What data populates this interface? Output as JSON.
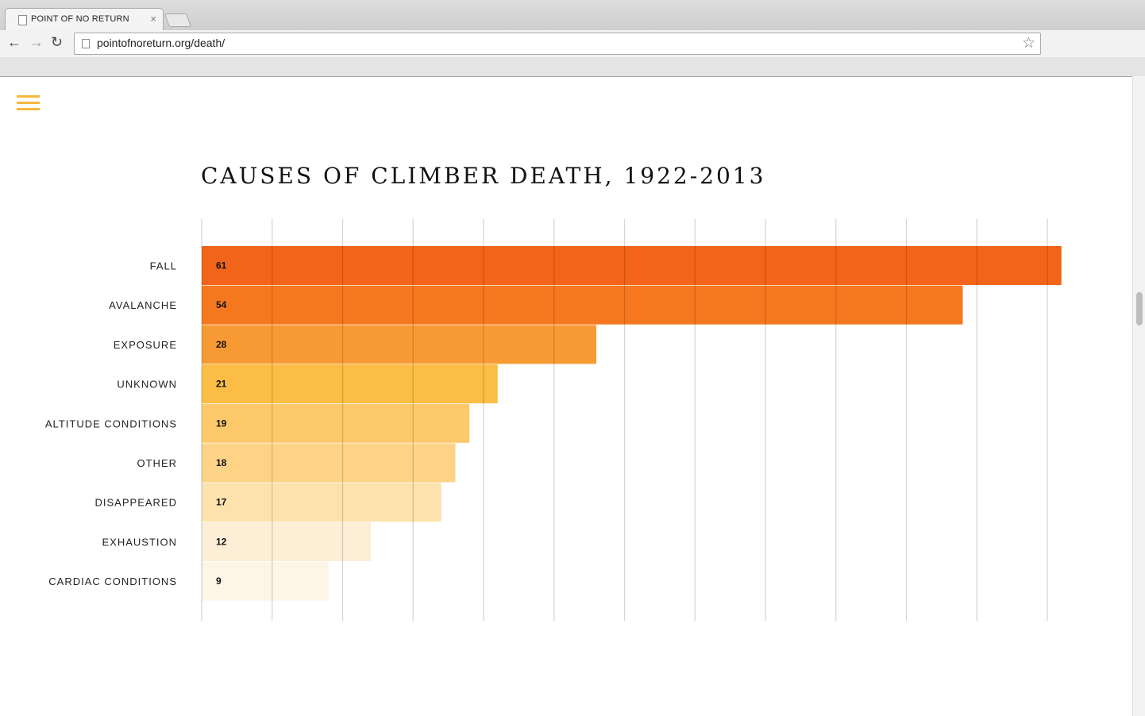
{
  "browser": {
    "tab_title": "POINT OF NO RETURN",
    "tab_close": "×",
    "url": "pointofnoreturn.org/death/",
    "back": "←",
    "forward": "→",
    "reload": "↻",
    "star": "☆"
  },
  "page": {
    "menu_icon": "hamburger-menu-icon",
    "accent": "#f6b73c"
  },
  "chart_data": {
    "type": "bar",
    "orientation": "horizontal",
    "title": "CAUSES OF CLIMBER DEATH, 1922-2013",
    "categories": [
      "FALL",
      "AVALANCHE",
      "EXPOSURE",
      "UNKNOWN",
      "ALTITUDE CONDITIONS",
      "OTHER",
      "DISAPPEARED",
      "EXHAUSTION",
      "CARDIAC CONDITIONS"
    ],
    "values": [
      61,
      54,
      28,
      21,
      19,
      18,
      17,
      12,
      9
    ],
    "value_labels": [
      "61",
      "54",
      "28",
      "21",
      "19",
      "18",
      "17",
      "12",
      "9"
    ],
    "colors": [
      "#f26419",
      "#f5781f",
      "#f89a33",
      "#fbbd45",
      "#fdc96a",
      "#fed386",
      "#fde2ad",
      "#fdeed6",
      "#fdf5e6"
    ],
    "xlim": [
      0,
      60
    ],
    "grid": true,
    "grid_step": 5,
    "legend": "none"
  }
}
